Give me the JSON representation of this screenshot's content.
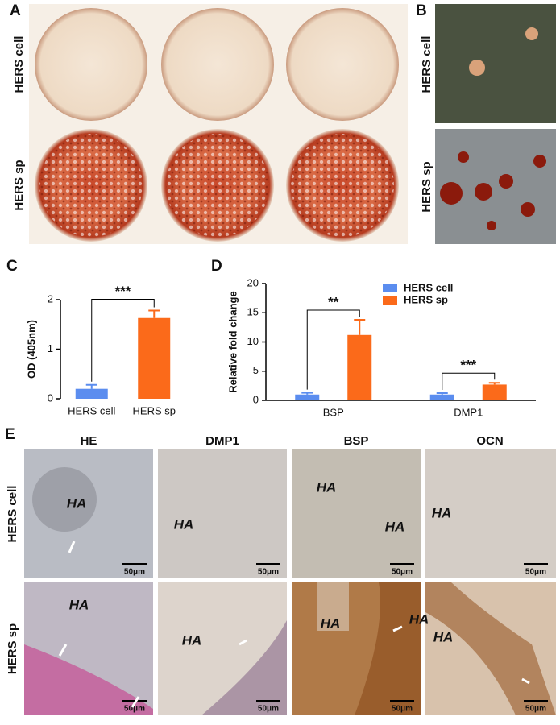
{
  "panel_labels": [
    "A",
    "B",
    "C",
    "D",
    "E"
  ],
  "rows": [
    "HERS cell",
    "HERS sp"
  ],
  "columns": [
    "HE",
    "DMP1",
    "BSP",
    "OCN"
  ],
  "ha_label": "HA",
  "scale_bar": "50μm",
  "chart_data": [
    {
      "type": "bar",
      "ylabel": "OD (405nm)",
      "categories": [
        "HERS cell",
        "HERS sp"
      ],
      "values": [
        0.2,
        1.63
      ],
      "errors": [
        0.08,
        0.15
      ],
      "colors": [
        "#5b8def",
        "#fb6a1a"
      ],
      "ylim": [
        0,
        2
      ],
      "yticks": [
        0,
        1,
        2
      ],
      "annotations": [
        "***"
      ]
    },
    {
      "type": "bar",
      "ylabel": "Relative fold change",
      "categories": [
        "BSP",
        "DMP1"
      ],
      "series": [
        {
          "name": "HERS cell",
          "color": "#5b8def",
          "values": [
            1,
            1
          ],
          "errors": [
            0.3,
            0.25
          ]
        },
        {
          "name": "HERS sp",
          "color": "#fb6a1a",
          "values": [
            11.2,
            2.7
          ],
          "errors": [
            2.6,
            0.3
          ]
        }
      ],
      "ylim": [
        0,
        20
      ],
      "yticks": [
        0,
        5,
        10,
        15,
        20
      ],
      "annotations": [
        "**",
        "***"
      ],
      "legend": "upper right"
    }
  ]
}
